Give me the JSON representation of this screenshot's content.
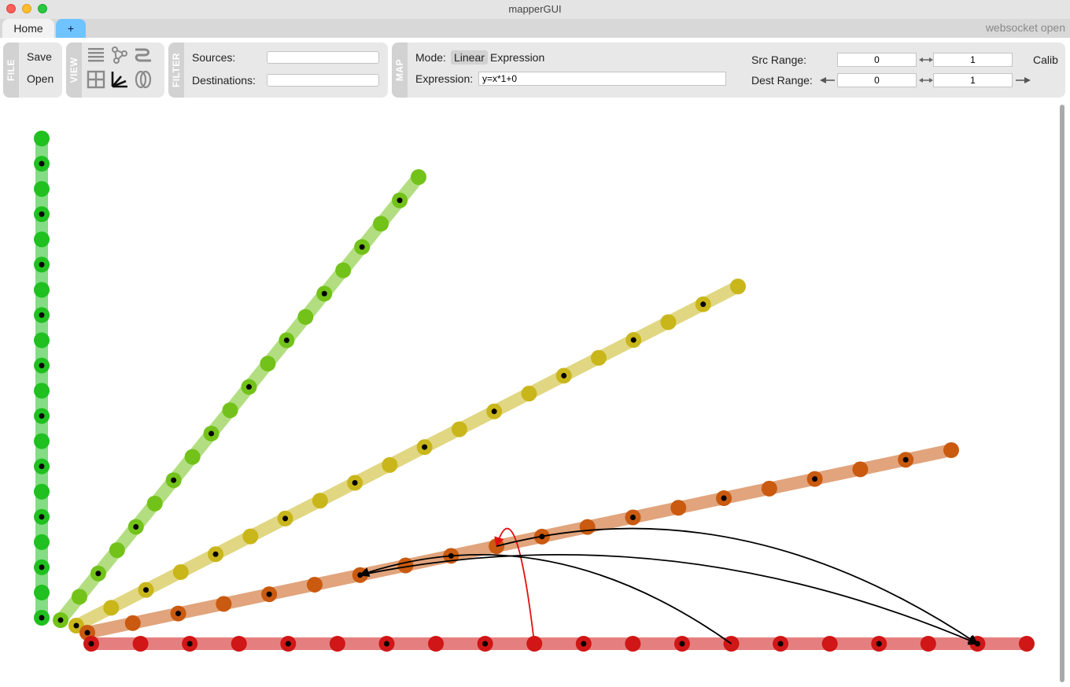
{
  "window": {
    "title": "mapperGUI"
  },
  "tabs": [
    {
      "label": "Home"
    },
    {
      "label": "+"
    }
  ],
  "status": "websocket open",
  "file_panel": {
    "label": "FILE",
    "save": "Save",
    "open": "Open"
  },
  "view_panel": {
    "label": "VIEW",
    "icons": [
      "list-view-icon",
      "graph-view-icon",
      "parallel-view-icon",
      "grid-view-icon",
      "chord-view-icon",
      "balloon-view-icon"
    ],
    "active_icon": "chord-view-icon"
  },
  "filter_panel": {
    "label": "FILTER",
    "sources_label": "Sources:",
    "sources_value": "",
    "destinations_label": "Destinations:",
    "destinations_value": ""
  },
  "map_panel": {
    "label": "MAP",
    "mode_label": "Mode:",
    "mode_linear": "Linear",
    "mode_expression": "Expression",
    "active_mode": "Linear",
    "expression_label": "Expression:",
    "expression_value": "y=x*1+0",
    "src_range_label": "Src Range:",
    "src_min": "0",
    "src_max": "1",
    "dest_range_label": "Dest Range:",
    "dest_min": "0",
    "dest_max": "1",
    "calib": "Calib"
  },
  "colors": {
    "device_1": "#1fc01f",
    "device_2": "#73c21a",
    "device_3": "#c9b61b",
    "device_4": "#c95a10",
    "device_5": "#d01616",
    "selected_map": "#e01010",
    "map": "#000000",
    "accent_tab": "#6fc3ff"
  },
  "devices": [
    {
      "color_key": "device_1",
      "signal_count": 20
    },
    {
      "color_key": "device_2",
      "signal_count": 20
    },
    {
      "color_key": "device_3",
      "signal_count": 20
    },
    {
      "color_key": "device_4",
      "signal_count": 20
    },
    {
      "color_key": "device_5",
      "signal_count": 20
    }
  ],
  "maps": [
    {
      "src_device": 5,
      "src_signal": 9,
      "dst_device": 4,
      "dst_signal": 9,
      "selected": true
    },
    {
      "src_device": 5,
      "src_signal": 13,
      "dst_device": 4,
      "dst_signal": 6,
      "selected": false
    },
    {
      "src_device": 4,
      "src_signal": 9,
      "dst_device": 5,
      "dst_signal": 18,
      "selected": false
    },
    {
      "src_device": 4,
      "src_signal": 6,
      "dst_device": 5,
      "dst_signal": 18,
      "selected": false
    }
  ]
}
